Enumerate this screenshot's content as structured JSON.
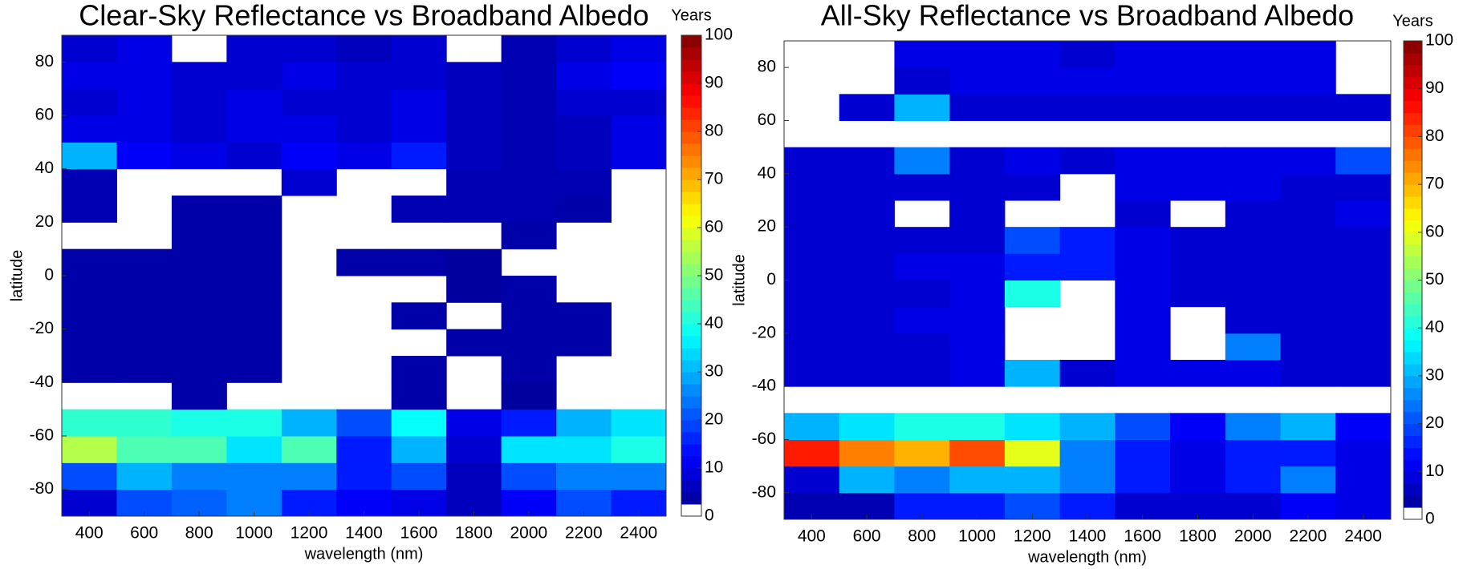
{
  "chart_data": [
    {
      "type": "heatmap",
      "title": "Clear-Sky Reflectance vs Broadband Albedo",
      "xlabel": "wavelength (nm)",
      "ylabel": "latitude",
      "x_bins": [
        300,
        500,
        700,
        900,
        1100,
        1300,
        1500,
        1700,
        1900,
        2100,
        2300,
        2500
      ],
      "y_bins": [
        -90,
        -80,
        -70,
        -60,
        -50,
        -40,
        -30,
        -20,
        -10,
        0,
        10,
        20,
        30,
        40,
        50,
        60,
        70,
        80,
        90
      ],
      "values": [
        [
          8,
          20,
          22,
          25,
          15,
          12,
          10,
          6,
          12,
          20,
          15
        ],
        [
          20,
          30,
          25,
          25,
          25,
          15,
          20,
          6,
          20,
          25,
          25
        ],
        [
          55,
          45,
          45,
          35,
          45,
          15,
          30,
          8,
          35,
          35,
          40
        ],
        [
          42,
          42,
          40,
          40,
          30,
          20,
          38,
          10,
          15,
          30,
          35
        ],
        [
          null,
          null,
          4,
          null,
          null,
          null,
          4,
          null,
          3,
          null,
          null
        ],
        [
          4,
          4,
          4,
          4,
          null,
          null,
          4,
          null,
          4,
          null,
          null
        ],
        [
          4,
          4,
          4,
          4,
          null,
          null,
          null,
          4,
          4,
          4,
          null
        ],
        [
          4,
          4,
          4,
          4,
          null,
          null,
          4,
          null,
          4,
          4,
          null
        ],
        [
          4,
          4,
          4,
          4,
          null,
          null,
          null,
          3,
          4,
          null,
          null
        ],
        [
          4,
          4,
          4,
          4,
          null,
          4,
          4,
          3,
          null,
          null,
          null
        ],
        [
          null,
          null,
          4,
          4,
          null,
          null,
          null,
          null,
          4,
          null,
          null
        ],
        [
          5,
          null,
          4,
          4,
          null,
          null,
          5,
          5,
          5,
          4,
          null
        ],
        [
          5,
          null,
          null,
          null,
          8,
          null,
          null,
          5,
          5,
          5,
          null
        ],
        [
          30,
          12,
          10,
          8,
          12,
          10,
          15,
          6,
          5,
          6,
          10
        ],
        [
          10,
          10,
          8,
          10,
          10,
          8,
          10,
          6,
          5,
          6,
          10
        ],
        [
          8,
          10,
          8,
          10,
          8,
          8,
          10,
          6,
          5,
          8,
          8
        ],
        [
          10,
          10,
          8,
          8,
          10,
          8,
          8,
          6,
          5,
          10,
          12
        ],
        [
          8,
          10,
          null,
          8,
          8,
          6,
          8,
          null,
          5,
          8,
          10
        ]
      ],
      "xlim": [
        300,
        2500
      ],
      "ylim": [
        -90,
        90
      ],
      "xticks": [
        400,
        600,
        800,
        1000,
        1200,
        1400,
        1600,
        1800,
        2000,
        2200,
        2400
      ],
      "yticks": [
        -80,
        -60,
        -40,
        -20,
        0,
        20,
        40,
        60,
        80
      ],
      "colorbar": {
        "label": "Years",
        "colormap": "jet",
        "clim": [
          0,
          100
        ],
        "ticks": [
          0,
          10,
          20,
          30,
          40,
          50,
          60,
          70,
          80,
          90,
          100
        ]
      }
    },
    {
      "type": "heatmap",
      "title": "All-Sky Reflectance vs Broadband Albedo",
      "xlabel": "wavelength (nm)",
      "ylabel": "latitude",
      "x_bins": [
        300,
        500,
        700,
        900,
        1100,
        1300,
        1500,
        1700,
        1900,
        2100,
        2300,
        2500
      ],
      "y_bins": [
        -90,
        -80,
        -70,
        -60,
        -50,
        -40,
        -30,
        -20,
        -10,
        0,
        10,
        20,
        30,
        40,
        50,
        60,
        70,
        80,
        90
      ],
      "values": [
        [
          5,
          5,
          15,
          15,
          20,
          15,
          8,
          8,
          8,
          12,
          10
        ],
        [
          8,
          30,
          25,
          30,
          30,
          25,
          15,
          10,
          15,
          25,
          10
        ],
        [
          85,
          75,
          70,
          80,
          60,
          25,
          15,
          10,
          15,
          15,
          10
        ],
        [
          30,
          35,
          40,
          40,
          35,
          30,
          20,
          12,
          25,
          30,
          12
        ],
        [
          null,
          null,
          null,
          null,
          null,
          null,
          null,
          null,
          null,
          null,
          null
        ],
        [
          8,
          8,
          8,
          10,
          30,
          8,
          10,
          10,
          10,
          8,
          8
        ],
        [
          8,
          8,
          8,
          10,
          null,
          null,
          10,
          null,
          25,
          8,
          8
        ],
        [
          8,
          8,
          10,
          10,
          null,
          null,
          10,
          null,
          8,
          8,
          8
        ],
        [
          8,
          8,
          8,
          10,
          40,
          null,
          10,
          8,
          8,
          8,
          8
        ],
        [
          8,
          8,
          10,
          10,
          15,
          15,
          10,
          8,
          8,
          8,
          8
        ],
        [
          8,
          8,
          8,
          8,
          20,
          15,
          10,
          8,
          8,
          8,
          8
        ],
        [
          8,
          8,
          null,
          8,
          null,
          null,
          8,
          null,
          8,
          8,
          10
        ],
        [
          8,
          8,
          8,
          8,
          8,
          null,
          10,
          10,
          10,
          8,
          8
        ],
        [
          8,
          8,
          25,
          8,
          10,
          8,
          10,
          10,
          10,
          10,
          20
        ],
        [
          null,
          null,
          null,
          null,
          null,
          null,
          null,
          null,
          null,
          null,
          null
        ],
        [
          null,
          8,
          30,
          8,
          8,
          8,
          8,
          8,
          8,
          8,
          8
        ],
        [
          null,
          null,
          8,
          10,
          10,
          10,
          10,
          10,
          10,
          10,
          null
        ],
        [
          null,
          null,
          10,
          10,
          10,
          8,
          10,
          10,
          10,
          10,
          null
        ]
      ],
      "xlim": [
        300,
        2500
      ],
      "ylim": [
        -90,
        90
      ],
      "xticks": [
        400,
        600,
        800,
        1000,
        1200,
        1400,
        1600,
        1800,
        2000,
        2200,
        2400
      ],
      "yticks": [
        -80,
        -60,
        -40,
        -20,
        0,
        20,
        40,
        60,
        80
      ],
      "colorbar": {
        "label": "Years",
        "colormap": "jet",
        "clim": [
          0,
          100
        ],
        "ticks": [
          0,
          10,
          20,
          30,
          40,
          50,
          60,
          70,
          80,
          90,
          100
        ]
      }
    }
  ]
}
